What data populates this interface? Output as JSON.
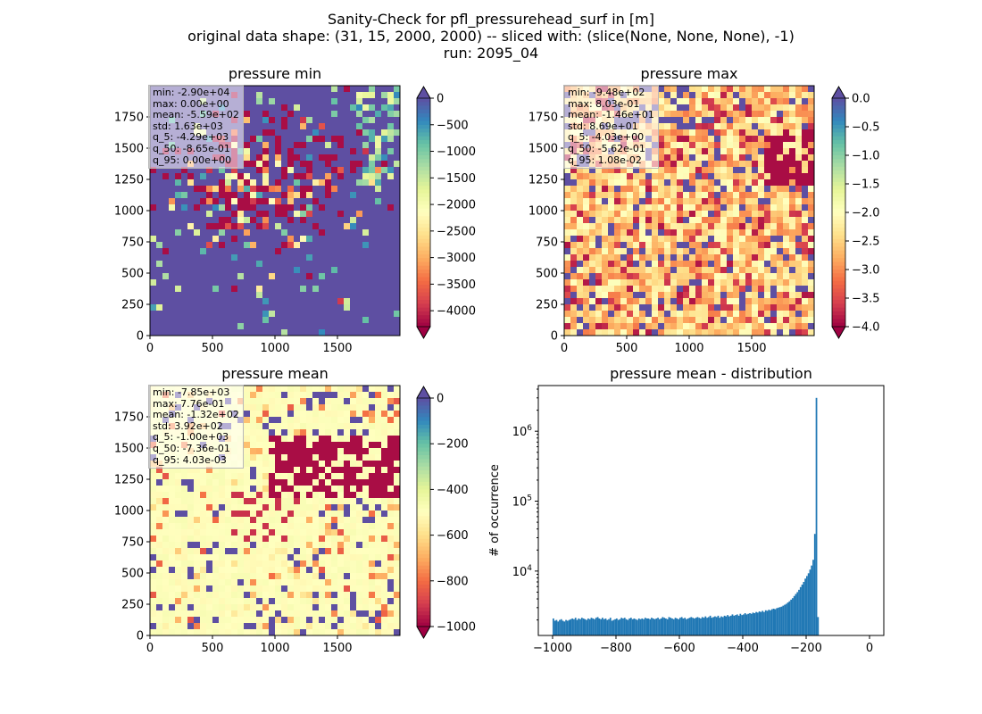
{
  "title": {
    "line1": "Sanity-Check for pfl_pressurehead_surf in [m]",
    "line2": "original data shape: (31, 15, 2000, 2000) -- sliced with: (slice(None, None, None), -1)",
    "line3": "run: 2095_04"
  },
  "colors": {
    "spectral": [
      "#9e0142",
      "#d53e4f",
      "#f46d43",
      "#fdae61",
      "#fee08b",
      "#ffffbf",
      "#e6f598",
      "#abdda4",
      "#66c2a5",
      "#3288bd",
      "#5e4fa2"
    ],
    "hist_bar": "#1f77b4"
  },
  "chart_data": [
    {
      "type": "heatmap",
      "title": "pressure min",
      "xlim": [
        0,
        2000
      ],
      "ylim": [
        0,
        2000
      ],
      "x_ticks": [
        "0",
        "500",
        "1000",
        "1500"
      ],
      "y_ticks": [
        "0",
        "250",
        "500",
        "750",
        "1000",
        "1250",
        "1500",
        "1750"
      ],
      "colorbar": {
        "min": -4300,
        "max": 0,
        "extend": "both",
        "ticks": [
          "0",
          "−500",
          "−1000",
          "−1500",
          "−2000",
          "−2500",
          "−3000",
          "−3500",
          "−4000"
        ],
        "tick_values": [
          0,
          -500,
          -1000,
          -1500,
          -2000,
          -2500,
          -3000,
          -3500,
          -4000
        ]
      },
      "stats": [
        "min: -2.90e+04",
        "max: 0.00e+00",
        "mean: -5.59e+02",
        "std: 1.63e+03",
        "q_5: -4.29e+03",
        "q_50: -8.65e-01",
        "q_95: 0.00e+00"
      ]
    },
    {
      "type": "heatmap",
      "title": "pressure max",
      "xlim": [
        0,
        2000
      ],
      "ylim": [
        0,
        2000
      ],
      "x_ticks": [
        "0",
        "500",
        "1000",
        "1500"
      ],
      "y_ticks": [
        "0",
        "250",
        "500",
        "750",
        "1000",
        "1250",
        "1500",
        "1750"
      ],
      "colorbar": {
        "min": -4.0,
        "max": 0.0,
        "extend": "both",
        "ticks": [
          "0.0",
          "−0.5",
          "−1.0",
          "−1.5",
          "−2.0",
          "−2.5",
          "−3.0",
          "−3.5",
          "−4.0"
        ],
        "tick_values": [
          0.0,
          -0.5,
          -1.0,
          -1.5,
          -2.0,
          -2.5,
          -3.0,
          -3.5,
          -4.0
        ]
      },
      "stats": [
        "min: -9.48e+02",
        "max: 8.03e-01",
        "mean: -1.46e+01",
        "std: 8.69e+01",
        "q_5: -4.03e+00",
        "q_50: -5.62e-01",
        "q_95: 1.08e-02"
      ]
    },
    {
      "type": "heatmap",
      "title": "pressure mean",
      "xlim": [
        0,
        2000
      ],
      "ylim": [
        0,
        2000
      ],
      "x_ticks": [
        "0",
        "500",
        "1000",
        "1500"
      ],
      "y_ticks": [
        "0",
        "250",
        "500",
        "750",
        "1000",
        "1250",
        "1500",
        "1750"
      ],
      "colorbar": {
        "min": -1000,
        "max": 0,
        "extend": "both",
        "ticks": [
          "0",
          "−200",
          "−400",
          "−600",
          "−800",
          "−1000"
        ],
        "tick_values": [
          0,
          -200,
          -400,
          -600,
          -800,
          -1000
        ]
      },
      "stats": [
        "min: -7.85e+03",
        "max: 7.76e-01",
        "mean: -1.32e+02",
        "std: 3.92e+02",
        "q_5: -1.00e+03",
        "q_50: -7.36e-01",
        "q_95: 4.03e-03"
      ]
    },
    {
      "type": "bar",
      "title": "pressure mean - distribution",
      "ylabel": "# of occurrence",
      "yscale": "log",
      "xlim": [
        -1045,
        45
      ],
      "ylim": [
        1200,
        4500000
      ],
      "x_ticks": [
        "−1000",
        "−800",
        "−600",
        "−400",
        "−200",
        "0"
      ],
      "x_tick_values": [
        -1000,
        -800,
        -600,
        -400,
        -200,
        0
      ],
      "y_ticks": [
        "10^4",
        "10^5",
        "10^6"
      ],
      "y_tick_values": [
        10000,
        100000,
        1000000
      ],
      "bin_width": 5,
      "bins_start": -1000,
      "counts": [
        2100,
        1950,
        2000,
        1900,
        2000,
        2050,
        1950,
        1900,
        2000,
        1950,
        2000,
        2050,
        2100,
        2050,
        2150,
        2000,
        2100,
        2050,
        2150,
        2100,
        2050,
        2000,
        2100,
        2050,
        2150,
        2100,
        2050,
        2150,
        2200,
        2100,
        2050,
        2150,
        2050,
        2100,
        2000,
        2050,
        2150,
        1950,
        2000,
        2050,
        2100,
        2000,
        2050,
        2150,
        2100,
        2150,
        2050,
        2000,
        2100,
        2150,
        2050,
        2100,
        2050,
        2000,
        2100,
        2050,
        2100,
        2050,
        2150,
        2100,
        2100,
        2050,
        2150,
        2100,
        2050,
        2100,
        2150,
        2050,
        2100,
        2200,
        2150,
        2100,
        2050,
        2200,
        2150,
        2100,
        2050,
        2150,
        2100,
        2050,
        2150,
        2200,
        2100,
        2150,
        2050,
        2100,
        2150,
        2200,
        2150,
        2100,
        2150,
        2200,
        2150,
        2100,
        2200,
        2150,
        2250,
        2150,
        2200,
        2300,
        2150,
        2200,
        2250,
        2200,
        2300,
        2150,
        2250,
        2200,
        2300,
        2250,
        2350,
        2250,
        2300,
        2400,
        2300,
        2350,
        2400,
        2300,
        2450,
        2350,
        2400,
        2500,
        2400,
        2450,
        2500,
        2450,
        2550,
        2500,
        2600,
        2550,
        2650,
        2600,
        2700,
        2600,
        2750,
        2700,
        2800,
        2750,
        2850,
        2900,
        2850,
        2950,
        3000,
        3050,
        3100,
        3200,
        3300,
        3400,
        3550,
        3700,
        3900,
        4100,
        4400,
        4700,
        5000,
        5400,
        5900,
        6400,
        7000,
        7800,
        8500,
        9300,
        10500,
        12000,
        14500,
        34000,
        3000000,
        2200
      ]
    }
  ]
}
